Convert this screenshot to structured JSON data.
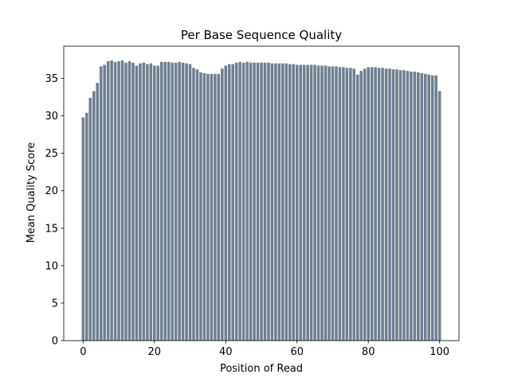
{
  "chart_data": {
    "type": "bar",
    "title": "Per Base Sequence Quality",
    "xlabel": "Position of Read",
    "ylabel": "Mean Quality Score",
    "color": "#708090",
    "grid": false,
    "x": [
      0,
      1,
      2,
      3,
      4,
      5,
      6,
      7,
      8,
      9,
      10,
      11,
      12,
      13,
      14,
      15,
      16,
      17,
      18,
      19,
      20,
      21,
      22,
      23,
      24,
      25,
      26,
      27,
      28,
      29,
      30,
      31,
      32,
      33,
      34,
      35,
      36,
      37,
      38,
      39,
      40,
      41,
      42,
      43,
      44,
      45,
      46,
      47,
      48,
      49,
      50,
      51,
      52,
      53,
      54,
      55,
      56,
      57,
      58,
      59,
      60,
      61,
      62,
      63,
      64,
      65,
      66,
      67,
      68,
      69,
      70,
      71,
      72,
      73,
      74,
      75,
      76,
      77,
      78,
      79,
      80,
      81,
      82,
      83,
      84,
      85,
      86,
      87,
      88,
      89,
      90,
      91,
      92,
      93,
      94,
      95,
      96,
      97,
      98,
      99,
      100
    ],
    "values": [
      29.8,
      30.4,
      32.4,
      33.3,
      34.4,
      36.6,
      36.8,
      37.3,
      37.4,
      37.2,
      37.3,
      37.4,
      37.1,
      37.3,
      37.1,
      36.7,
      37.0,
      37.1,
      36.9,
      37.0,
      36.7,
      36.7,
      37.2,
      37.2,
      37.2,
      37.1,
      37.1,
      37.2,
      37.1,
      37.0,
      36.9,
      36.4,
      36.2,
      35.8,
      35.7,
      35.6,
      35.6,
      35.6,
      35.6,
      36.3,
      36.7,
      36.9,
      36.9,
      37.1,
      37.2,
      37.1,
      37.2,
      37.1,
      37.1,
      37.1,
      37.1,
      37.1,
      37.1,
      37.0,
      37.0,
      37.0,
      37.0,
      37.0,
      36.9,
      36.9,
      36.8,
      36.8,
      36.8,
      36.8,
      36.8,
      36.8,
      36.7,
      36.7,
      36.7,
      36.6,
      36.6,
      36.6,
      36.5,
      36.5,
      36.4,
      36.4,
      36.3,
      35.5,
      36.0,
      36.3,
      36.5,
      36.5,
      36.5,
      36.4,
      36.4,
      36.3,
      36.3,
      36.2,
      36.2,
      36.1,
      36.1,
      36.0,
      35.9,
      35.9,
      35.8,
      35.7,
      35.6,
      35.5,
      35.4,
      35.4,
      33.3
    ],
    "xlim": [
      -5.44,
      105.44
    ],
    "xticks": [
      0,
      20,
      40,
      60,
      80,
      100
    ],
    "ylim": [
      0,
      39.3
    ],
    "yticks": [
      0,
      5,
      10,
      15,
      20,
      25,
      30,
      35
    ]
  }
}
